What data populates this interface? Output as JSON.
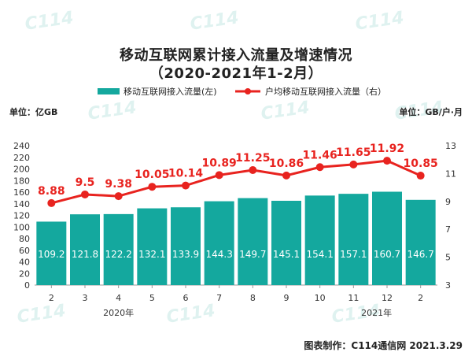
{
  "title_line1": "移动互联网累计接入流量及增速情况",
  "title_line2": "（2020-2021年1-2月）",
  "legend": {
    "bar_label": "移动互联网接入流量(左)",
    "line_label": "户均移动互联网接入流量（右）"
  },
  "unit_left": "单位：亿GB",
  "unit_right": "单位：GB/户·月",
  "footer": "图表制作：C114通信网  2021.3.29",
  "watermark": "C114",
  "colors": {
    "bar": "#14a89e",
    "line": "#e8231f",
    "bar_label": "#ffffff",
    "line_label": "#e8231f"
  },
  "chart_data": {
    "type": "bar",
    "categories": [
      "2",
      "3",
      "4",
      "5",
      "6",
      "7",
      "8",
      "9",
      "10",
      "11",
      "12",
      "2"
    ],
    "year_labels": [
      {
        "label": "2020年",
        "from_index": 0,
        "to_index": 10
      },
      {
        "label": "2021年",
        "from_index": 11,
        "to_index": 11
      }
    ],
    "series": [
      {
        "name": "移动互联网接入流量(左)",
        "type": "bar",
        "axis": "left",
        "values": [
          109.2,
          121.8,
          122.2,
          132.1,
          133.9,
          144.3,
          149.7,
          145.1,
          154.1,
          157.1,
          160.7,
          146.7
        ]
      },
      {
        "name": "户均移动互联网接入流量（右）",
        "type": "line",
        "axis": "right",
        "values": [
          8.88,
          9.5,
          9.38,
          10.05,
          10.14,
          10.89,
          11.25,
          10.86,
          11.46,
          11.65,
          11.92,
          10.85
        ]
      }
    ],
    "y_left": {
      "min": 0,
      "max": 240,
      "ticks": [
        0,
        20,
        40,
        60,
        80,
        100,
        120,
        140,
        160,
        180,
        200,
        220,
        240
      ]
    },
    "y_right": {
      "min": 3,
      "max": 13,
      "ticks": [
        3,
        5,
        7,
        9,
        11,
        13
      ]
    },
    "grid": false,
    "legend_position": "top"
  }
}
